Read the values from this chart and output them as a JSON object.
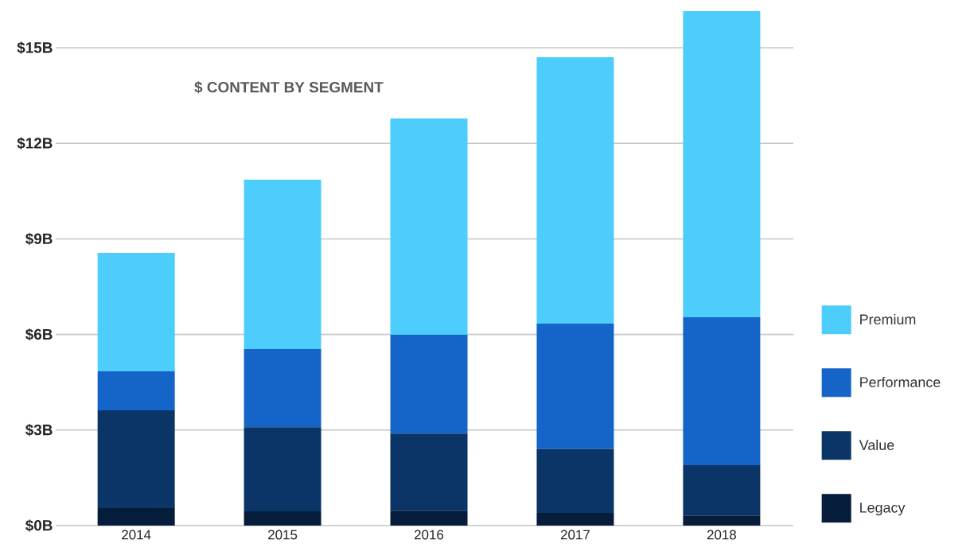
{
  "chart_data": {
    "type": "bar",
    "stacked": true,
    "title": "$ CONTENT BY SEGMENT",
    "categories": [
      "2014",
      "2015",
      "2016",
      "2017",
      "2018"
    ],
    "series": [
      {
        "name": "Legacy",
        "color": "#051d3a",
        "values": [
          0.55,
          0.45,
          0.47,
          0.4,
          0.32
        ]
      },
      {
        "name": "Value",
        "color": "#0a3566",
        "values": [
          3.07,
          2.64,
          2.42,
          2.0,
          1.58
        ]
      },
      {
        "name": "Performance",
        "color": "#1565c8",
        "values": [
          1.22,
          2.45,
          3.1,
          3.94,
          4.64
        ]
      },
      {
        "name": "Premium",
        "color": "#4ccdfc",
        "values": [
          3.72,
          5.32,
          6.79,
          8.36,
          9.61
        ]
      }
    ],
    "ylim": [
      0,
      16.2
    ],
    "yticks": [
      {
        "value": 0,
        "label": "$0B"
      },
      {
        "value": 3,
        "label": "$3B"
      },
      {
        "value": 6,
        "label": "$6B"
      },
      {
        "value": 9,
        "label": "$9B"
      },
      {
        "value": 12,
        "label": "$12B"
      },
      {
        "value": 15,
        "label": "$15B"
      }
    ],
    "grid": "y",
    "legend": "right"
  }
}
